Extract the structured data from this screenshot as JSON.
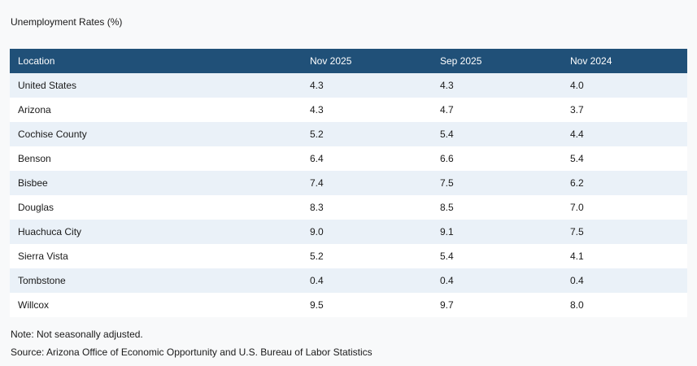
{
  "title": "Unemployment Rates (%)",
  "footer": {
    "note": "Note: Not seasonally adjusted.",
    "source": "Source: Arizona Office of Economic Opportunity and U.S. Bureau of Labor Statistics"
  },
  "colors": {
    "page_bg": "#F8F9FA",
    "header_bg": "#205078",
    "header_text": "#FFFFFF",
    "stripe_bg": "#EAF1F8",
    "row_bg": "#FFFFFF",
    "body_text": "#1A1A1A"
  },
  "chart_data": {
    "type": "table",
    "title": "Unemployment Rates (%)",
    "columns": [
      "Location",
      "Nov 2025",
      "Sep 2025",
      "Nov 2024"
    ],
    "rows": [
      [
        "United States",
        "4.3",
        "4.3",
        "4.0"
      ],
      [
        "Arizona",
        "4.3",
        "4.7",
        "3.7"
      ],
      [
        "Cochise County",
        "5.2",
        "5.4",
        "4.4"
      ],
      [
        "Benson",
        "6.4",
        "6.6",
        "5.4"
      ],
      [
        "Bisbee",
        "7.4",
        "7.5",
        "6.2"
      ],
      [
        "Douglas",
        "8.3",
        "8.5",
        "7.0"
      ],
      [
        "Huachuca City",
        "9.0",
        "9.1",
        "7.5"
      ],
      [
        "Sierra Vista",
        "5.2",
        "5.4",
        "4.1"
      ],
      [
        "Tombstone",
        "0.4",
        "0.4",
        "0.4"
      ],
      [
        "Willcox",
        "9.5",
        "9.7",
        "8.0"
      ]
    ],
    "notes": [
      "Note: Not seasonally adjusted.",
      "Source: Arizona Office of Economic Opportunity and U.S. Bureau of Labor Statistics"
    ],
    "layout": {
      "grid": false,
      "striped_rows": true,
      "header_position": "top"
    }
  }
}
